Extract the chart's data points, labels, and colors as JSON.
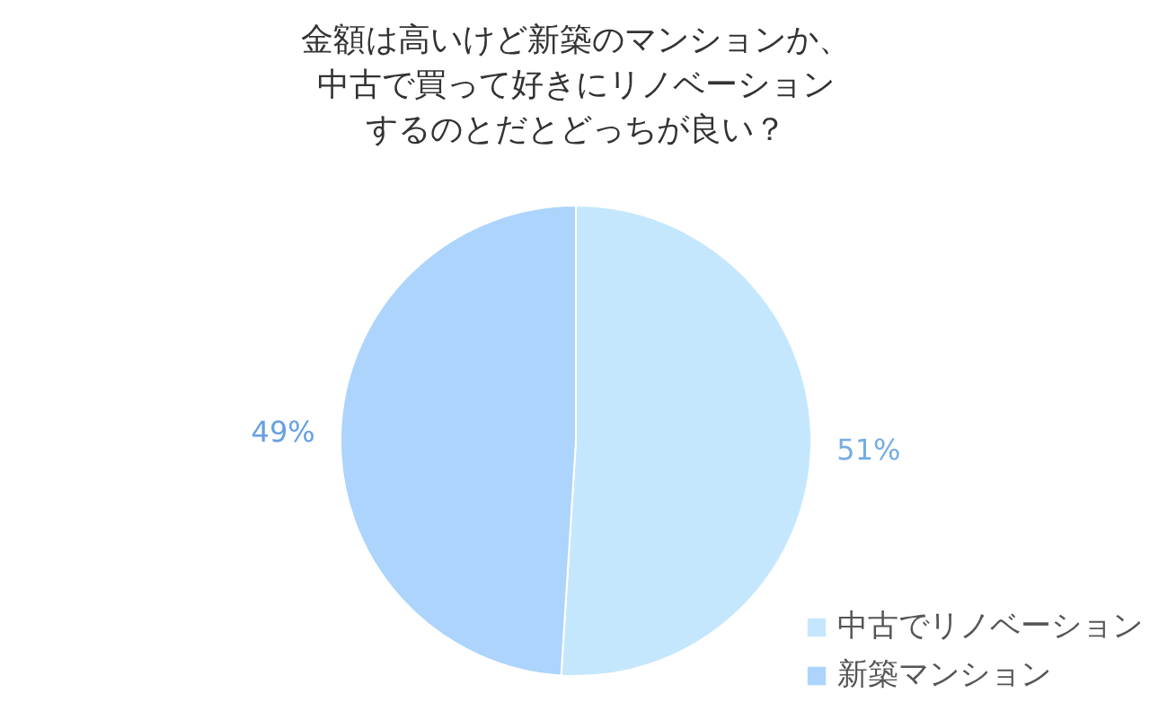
{
  "chart_data": {
    "type": "pie",
    "title": "金額は高いけど新築のマンションか、中古で買って好きにリノベーションするのとだとどっちが良い？",
    "categories": [
      "中古でリノベーション",
      "新築マンション"
    ],
    "values": [
      51,
      49
    ],
    "colors": [
      "#c5e7fd",
      "#acd4fc"
    ],
    "value_labels": [
      "51%",
      "49%"
    ],
    "legend": "bottom right"
  }
}
